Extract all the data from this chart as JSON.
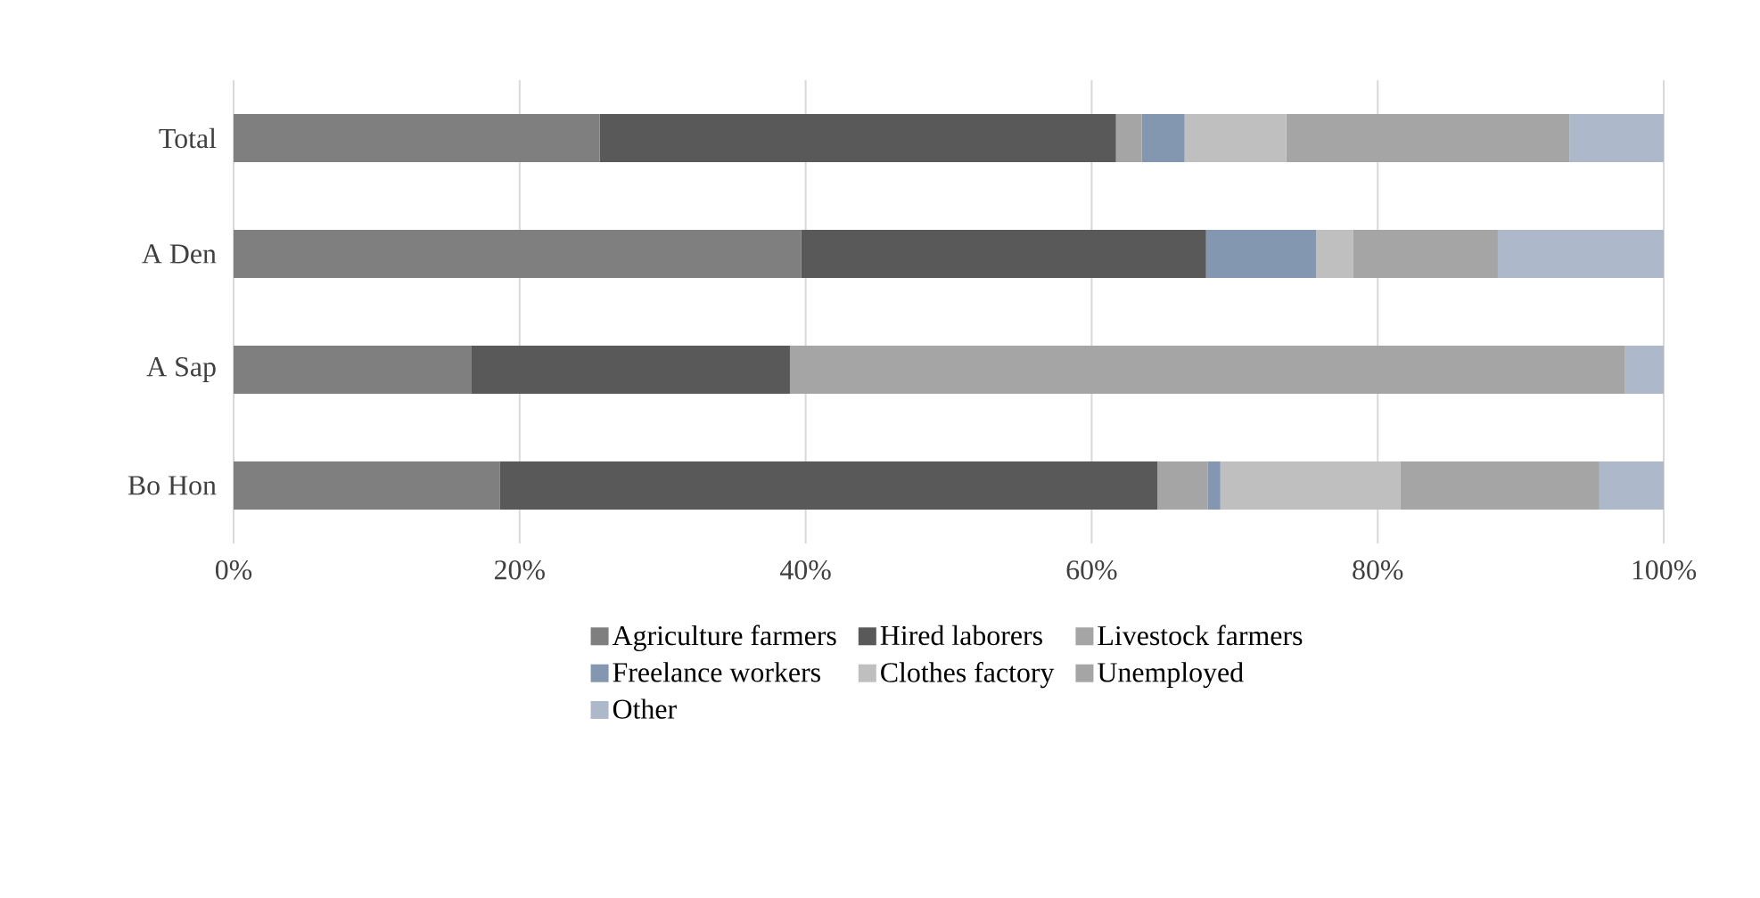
{
  "chart_data": {
    "type": "bar",
    "orientation": "horizontal",
    "stacked": true,
    "categories": [
      "Total",
      "A Den",
      "A Sap",
      "Bo Hon"
    ],
    "series": [
      {
        "name": "Agriculture farmers",
        "color": "#7f7f7f",
        "values": [
          25.6,
          39.7,
          16.6,
          18.6
        ]
      },
      {
        "name": "Hired laborers",
        "color": "#595959",
        "values": [
          36.1,
          28.3,
          22.3,
          46.0
        ]
      },
      {
        "name": "Livestock farmers",
        "color": "#a5a5a5",
        "values": [
          1.8,
          0,
          58.4,
          3.5
        ]
      },
      {
        "name": "Freelance workers",
        "color": "#8497b0",
        "values": [
          3.0,
          7.7,
          0,
          0.9
        ]
      },
      {
        "name": "Clothes factory",
        "color": "#bfbfbf",
        "values": [
          7.1,
          2.6,
          0,
          12.6
        ]
      },
      {
        "name": "Unemployed",
        "color": "#a5a5a5",
        "values": [
          19.8,
          10.1,
          0,
          13.9
        ]
      },
      {
        "name": "Other",
        "color": "#adb9ca",
        "values": [
          6.6,
          11.6,
          2.7,
          4.5
        ]
      }
    ],
    "xlim": [
      0,
      100
    ],
    "xticks": [
      {
        "value": 0,
        "label": "0%"
      },
      {
        "value": 20,
        "label": "20%"
      },
      {
        "value": 40,
        "label": "40%"
      },
      {
        "value": 60,
        "label": "60%"
      },
      {
        "value": 80,
        "label": "80%"
      },
      {
        "value": 100,
        "label": "100%"
      }
    ],
    "grid": "x",
    "legend": "bottom"
  }
}
